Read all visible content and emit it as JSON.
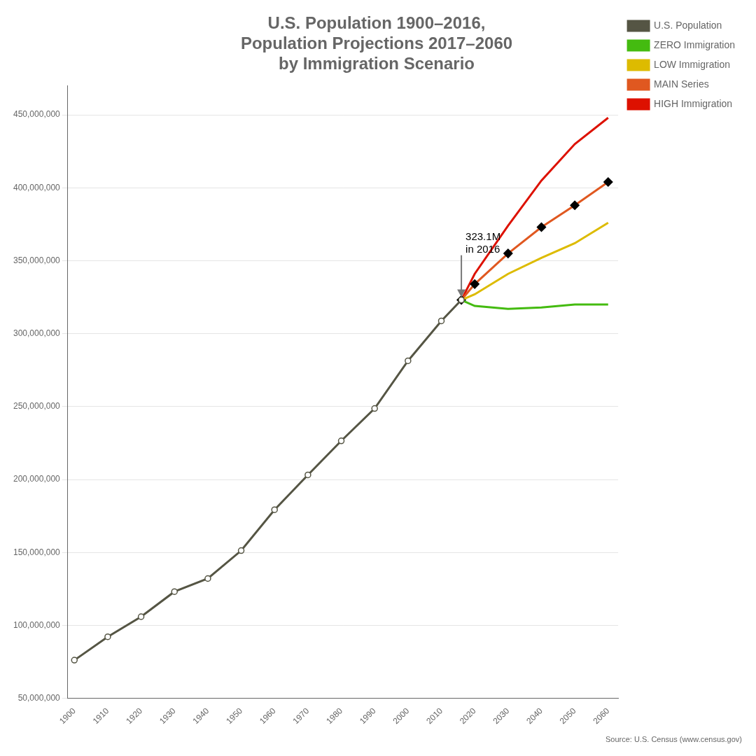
{
  "chart_data": {
    "type": "line",
    "title": "U.S. Population 1900–2016,\nPopulation Projections 2017–2060\nby Immigration Scenario",
    "source": "Source: U.S. Census (www.census.gov)",
    "series": [
      {
        "name": "HIGH Immigration",
        "color": "#dd1100",
        "x": [
          2016,
          2020,
          2030,
          2040,
          2050,
          2060
        ],
        "values": [
          323100000,
          341000000,
          374000000,
          405000000,
          430000000,
          448000000
        ]
      },
      {
        "name": "MAIN Series",
        "color": "#e05820",
        "marker": "diamond",
        "x": [
          2016,
          2020,
          2030,
          2040,
          2050,
          2060
        ],
        "values": [
          323100000,
          334000000,
          355000000,
          373000000,
          388000000,
          404000000
        ]
      },
      {
        "name": "LOW Immigration",
        "color": "#ddbb00",
        "x": [
          2016,
          2020,
          2030,
          2040,
          2050,
          2060
        ],
        "values": [
          323100000,
          327000000,
          341000000,
          352000000,
          362000000,
          376000000
        ]
      },
      {
        "name": "ZERO Immigration",
        "color": "#44bb10",
        "x": [
          2016,
          2020,
          2030,
          2040,
          2050,
          2060
        ],
        "values": [
          323100000,
          319000000,
          317000000,
          318000000,
          320000000,
          320000000
        ]
      },
      {
        "name": "U.S. Population",
        "color": "#555544",
        "marker": "circle",
        "x": [
          1900,
          1910,
          1920,
          1930,
          1940,
          1950,
          1960,
          1970,
          1980,
          1990,
          2000,
          2010,
          2016
        ],
        "values": [
          76212168,
          92228496,
          106021537,
          123202624,
          132164569,
          151325798,
          179323175,
          203211926,
          226545805,
          248709873,
          281421906,
          308745538,
          323100000
        ]
      }
    ],
    "xlim": [
      1898,
      2063
    ],
    "xticks": [
      1900,
      1910,
      1920,
      1930,
      1940,
      1950,
      1960,
      1970,
      1980,
      1990,
      2000,
      2010,
      2020,
      2030,
      2040,
      2050,
      2060
    ],
    "ylim": [
      50000000,
      470000000
    ],
    "yticks": [
      {
        "value": 50000000,
        "label": "50,000,000"
      },
      {
        "value": 100000000,
        "label": "100,000,000"
      },
      {
        "value": 150000000,
        "label": "150,000,000"
      },
      {
        "value": 200000000,
        "label": "200,000,000"
      },
      {
        "value": 250000000,
        "label": "250,000,000"
      },
      {
        "value": 300000000,
        "label": "300,000,000"
      },
      {
        "value": 350000000,
        "label": "350,000,000"
      },
      {
        "value": 400000000,
        "label": "400,000,000"
      },
      {
        "value": 450000000,
        "label": "450,000,000"
      }
    ],
    "annotations": [
      {
        "text": "323.1M\nin 2016",
        "x": 2016,
        "y": 325000000
      }
    ],
    "grid": "y",
    "legend": "right"
  }
}
